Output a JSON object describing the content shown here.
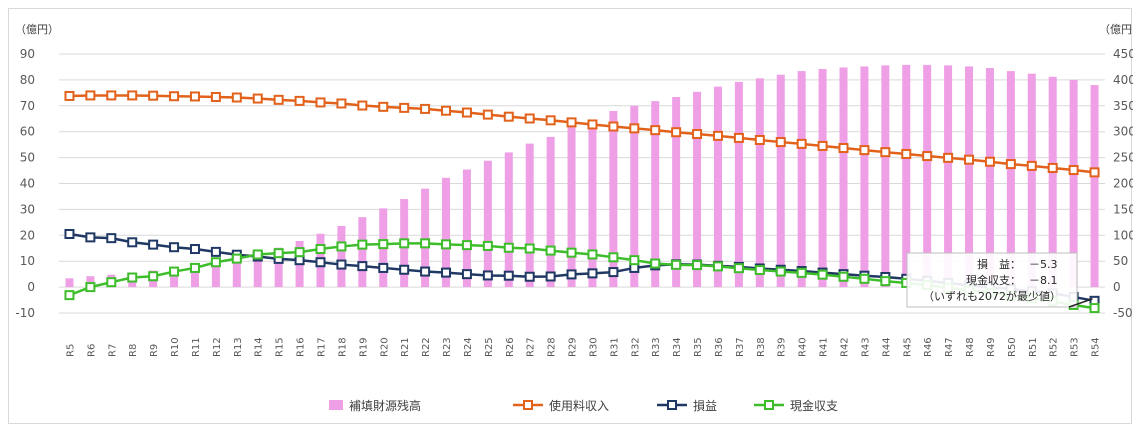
{
  "chart_data": {
    "type": "bar",
    "title": "",
    "left_axis": {
      "unit": "（億円）",
      "ticks": [
        90,
        80,
        70,
        60,
        50,
        40,
        30,
        20,
        10,
        0,
        -10
      ],
      "min": -10,
      "max": 90
    },
    "right_axis": {
      "unit": "（億円",
      "ticks": [
        "450",
        "400",
        "350",
        "300",
        "250",
        "200",
        "150",
        "100",
        "50",
        "0",
        "-50"
      ],
      "min": -50,
      "max": 450
    },
    "grid": true,
    "legend_position": "bottom",
    "categories": [
      "R5",
      "R6",
      "R7",
      "R8",
      "R9",
      "R10",
      "R11",
      "R12",
      "R13",
      "R14",
      "R15",
      "R16",
      "R17",
      "R18",
      "R19",
      "R20",
      "R21",
      "R22",
      "R23",
      "R24",
      "R25",
      "R26",
      "R27",
      "R28",
      "R29",
      "R30",
      "R31",
      "R32",
      "R33",
      "R34",
      "R35",
      "R36",
      "R37",
      "R38",
      "R39",
      "R40",
      "R41",
      "R42",
      "R43",
      "R44",
      "R45",
      "R46",
      "R47",
      "R48",
      "R49",
      "R50",
      "R51",
      "R52",
      "R53",
      "R54"
    ],
    "series": [
      {
        "name": "補填財源残高",
        "kind": "bar",
        "axis": "right",
        "color": "#EE9FE6",
        "values": [
          17,
          21,
          24,
          28,
          32,
          36,
          41,
          46,
          53,
          65,
          76,
          89,
          103,
          118,
          135,
          152,
          170,
          190,
          211,
          227,
          244,
          260,
          277,
          290,
          310,
          322,
          340,
          350,
          359,
          367,
          377,
          387,
          396,
          403,
          410,
          417,
          421,
          424,
          426,
          428,
          429,
          429,
          428,
          426,
          423,
          417,
          412,
          406,
          400,
          390
        ]
      },
      {
        "name": "使用料収入",
        "kind": "line",
        "axis": "left",
        "color": "#E2621B",
        "marker": "square",
        "values": [
          73.8,
          74.0,
          74.0,
          74.0,
          73.9,
          73.7,
          73.6,
          73.4,
          73.2,
          72.8,
          72.3,
          71.9,
          71.3,
          70.9,
          70.1,
          69.6,
          69.2,
          68.8,
          68.1,
          67.4,
          66.6,
          65.8,
          65.1,
          64.4,
          63.6,
          62.8,
          62.0,
          61.3,
          60.6,
          59.8,
          59.1,
          58.4,
          57.6,
          56.8,
          56.0,
          55.3,
          54.5,
          53.7,
          52.9,
          52.1,
          51.4,
          50.6,
          49.9,
          49.2,
          48.4,
          47.5,
          46.8,
          46.0,
          45.2,
          44.3
        ]
      },
      {
        "name": "損益",
        "kind": "line",
        "axis": "left",
        "color": "#203864",
        "marker": "square",
        "values": [
          20.5,
          19.2,
          18.9,
          17.3,
          16.4,
          15.4,
          14.7,
          13.6,
          12.5,
          11.8,
          10.9,
          10.4,
          9.6,
          8.7,
          8.1,
          7.4,
          6.7,
          6.0,
          5.6,
          5.0,
          4.5,
          4.4,
          4.0,
          4.1,
          4.9,
          5.3,
          5.8,
          7.4,
          8.4,
          8.8,
          8.7,
          8.2,
          7.8,
          7.2,
          6.7,
          6.2,
          5.6,
          5.0,
          4.4,
          3.9,
          3.2,
          2.4,
          1.6,
          0.7,
          0.0,
          -0.8,
          -1.6,
          -2.4,
          -3.8,
          -5.3
        ]
      },
      {
        "name": "現金収支",
        "kind": "line",
        "axis": "left",
        "color": "#3DBD2A",
        "marker": "square",
        "values": [
          -3.1,
          0.0,
          1.9,
          3.7,
          4.2,
          6.0,
          7.4,
          9.6,
          11.0,
          12.6,
          13.1,
          13.5,
          14.7,
          15.7,
          16.4,
          16.6,
          16.9,
          16.9,
          16.5,
          16.2,
          15.9,
          15.2,
          14.9,
          14.1,
          13.3,
          12.6,
          11.5,
          10.4,
          9.1,
          8.6,
          8.5,
          8.0,
          7.3,
          6.6,
          6.0,
          5.5,
          4.8,
          4.0,
          3.2,
          2.3,
          1.6,
          0.8,
          -0.3,
          -1.3,
          -2.2,
          -3.2,
          -4.3,
          -5.5,
          -6.9,
          -8.1
        ]
      }
    ],
    "annotation": {
      "line1_label": "損　益：",
      "line1_value": "－5.3",
      "line2_label": "現金収支：",
      "line2_value": "－8.1",
      "line3": "（いずれも2072が最少値）"
    }
  }
}
